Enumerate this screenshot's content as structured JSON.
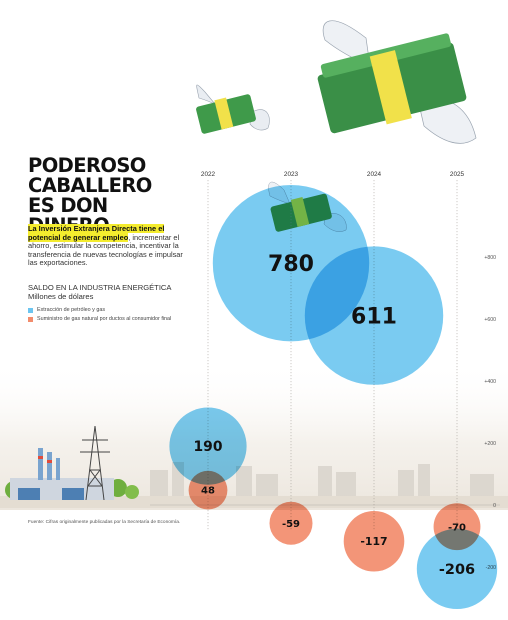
{
  "headline": [
    "PODEROSO",
    "CABALLERO",
    "ES DON DINERO"
  ],
  "lead": {
    "highlight": "La Inversión Extranjera Directa tiene el potencial de generar empleo",
    "rest": ", incrementar el ahorro, estimular la competencia, incentivar la transferencia de nuevas tecnologías e impulsar las exportaciones."
  },
  "subtitle": {
    "title": "Saldo en la industria energética",
    "units": "Millones de dólares"
  },
  "source": "Fuente: Cifras originalmente publicadas por la Secretaría de Economía.",
  "colors": {
    "blue": "#6cc5f0",
    "orange": "#f28c6c"
  },
  "illustration_icons": [
    "flying-money-icon",
    "transmission-tower-icon",
    "factory-icon",
    "city-skyline-icon",
    "trees-icon"
  ],
  "chart_data": {
    "type": "bubble",
    "x": [
      "2022",
      "2023",
      "2024",
      "2025"
    ],
    "ylim": [
      -250,
      900
    ],
    "yticks": [
      {
        "value": 800,
        "label": "+800"
      },
      {
        "value": 600,
        "label": "+600"
      },
      {
        "value": 400,
        "label": "+400"
      },
      {
        "value": 200,
        "label": "+200"
      },
      {
        "value": 0,
        "label": "0"
      },
      {
        "value": -200,
        "label": "-200"
      }
    ],
    "series": [
      {
        "name": "Extracción de petróleo y gas",
        "color": "#6cc5f0",
        "values": [
          190,
          780,
          611,
          -206
        ],
        "labels": [
          "190",
          "780",
          "611",
          "-206"
        ]
      },
      {
        "name": "Suministro de gas natural por ductos al consumidor final",
        "color": "#f28c6c",
        "values": [
          48,
          -59,
          -117,
          -70
        ],
        "labels": [
          "48",
          "-59",
          "-117",
          "-70"
        ]
      }
    ]
  }
}
